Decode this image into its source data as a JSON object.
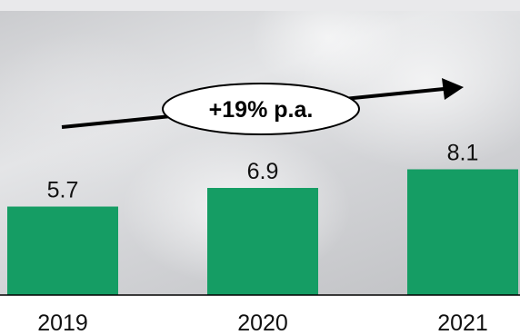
{
  "chart_data": {
    "type": "bar",
    "categories": [
      "2019",
      "2020",
      "2021"
    ],
    "values": [
      5.7,
      6.9,
      8.1
    ],
    "value_labels": [
      "5.7",
      "6.9",
      "8.1"
    ],
    "ylim": [
      0,
      10
    ],
    "grid": false,
    "annotation": {
      "text": "+19% p.a.",
      "type": "growth-arrow"
    },
    "bar_color": "#159d64"
  }
}
